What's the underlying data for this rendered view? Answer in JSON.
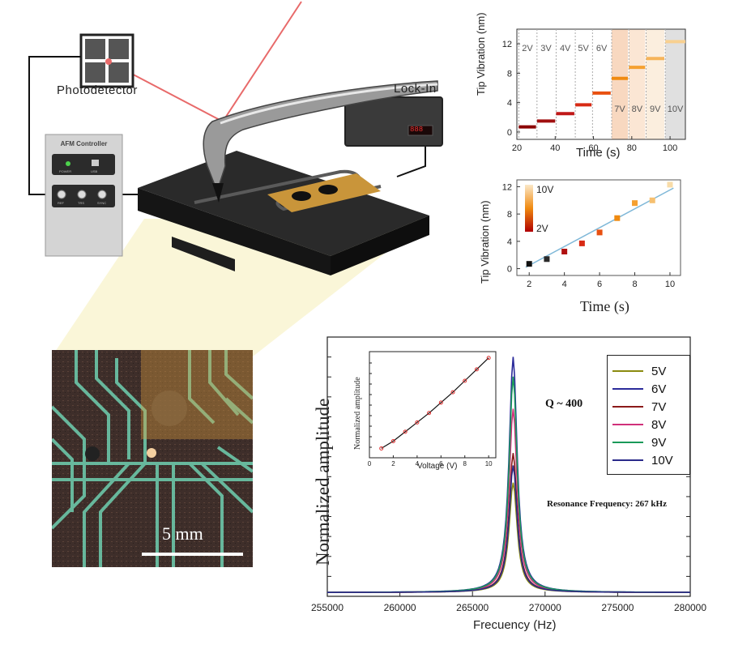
{
  "setup": {
    "photodetector_label": "Photodetector",
    "lockin_label": "Lock-In",
    "lockin_display": "888",
    "afm_controller": {
      "title": "AFM Controller",
      "top_ports": [
        "POWER",
        "USB"
      ],
      "bottom_ports": [
        "REF",
        "TRS",
        "SYNC"
      ]
    }
  },
  "micrograph": {
    "scale_bar_label": "5 mm"
  },
  "chart_data": [
    {
      "id": "time-trace",
      "type": "line",
      "xlabel": "Time (s)",
      "ylabel": "Tip Vibration (nm)",
      "xlim": [
        20,
        108
      ],
      "ylim": [
        -1,
        14
      ],
      "xticks": [
        20,
        40,
        60,
        80,
        100
      ],
      "yticks": [
        0,
        4,
        8,
        12
      ],
      "segments": [
        {
          "label": "2V",
          "x": [
            21,
            30
          ],
          "y": 0.7,
          "color": "#8b0000"
        },
        {
          "label": "3V",
          "x": [
            30.5,
            40
          ],
          "y": 1.5,
          "color": "#a01010"
        },
        {
          "label": "4V",
          "x": [
            40.5,
            50
          ],
          "y": 2.5,
          "color": "#c01818"
        },
        {
          "label": "5V",
          "x": [
            50.5,
            59
          ],
          "y": 3.7,
          "color": "#d82a14"
        },
        {
          "label": "6V",
          "x": [
            59.5,
            69
          ],
          "y": 5.3,
          "color": "#e85010"
        },
        {
          "label": "7V",
          "x": [
            69.5,
            78
          ],
          "y": 7.3,
          "color": "#f08a10"
        },
        {
          "label": "8V",
          "x": [
            78.5,
            87
          ],
          "y": 8.8,
          "color": "#f5a030"
        },
        {
          "label": "9V",
          "x": [
            87.5,
            97
          ],
          "y": 10.0,
          "color": "#f6b45a"
        },
        {
          "label": "10V",
          "x": [
            97.5,
            108
          ],
          "y": 12.3,
          "color": "#f8d090"
        }
      ]
    },
    {
      "id": "voltage-scatter",
      "type": "scatter",
      "xlabel": "Time (s)",
      "ylabel": "Tip Vibration (nm)",
      "xlim": [
        1.3,
        10.6
      ],
      "ylim": [
        -1,
        13
      ],
      "xticks": [
        2,
        4,
        6,
        8,
        10
      ],
      "yticks": [
        0,
        4,
        8,
        12
      ],
      "x": [
        2,
        3,
        4,
        5,
        6,
        7,
        8,
        9,
        10
      ],
      "y": [
        0.7,
        1.4,
        2.5,
        3.7,
        5.3,
        7.4,
        9.6,
        10.0,
        12.3
      ],
      "colors": [
        "#111111",
        "#2a2a2a",
        "#b01010",
        "#d82a14",
        "#e85010",
        "#f08a10",
        "#f5a030",
        "#f6c070",
        "#f8dca8"
      ],
      "fit": {
        "x": [
          1.8,
          10.2
        ],
        "y": [
          0.2,
          11.8
        ],
        "color": "#7fb8d8"
      },
      "colorbar": {
        "top_label": "10V",
        "bottom_label": "2V"
      }
    },
    {
      "id": "resonance",
      "type": "line",
      "xlabel": "Frecuency (Hz)",
      "ylabel": "Normalized amplitude",
      "xlim": [
        255000,
        280000
      ],
      "ylim": [
        0,
        1.05
      ],
      "xticks": [
        255000,
        260000,
        265000,
        270000,
        275000,
        280000
      ],
      "center_frequency": 267800,
      "series": [
        {
          "name": "5V",
          "color": "#8b8b10",
          "peak": 0.44
        },
        {
          "name": "6V",
          "color": "#2b2b9a",
          "peak": 0.95
        },
        {
          "name": "7V",
          "color": "#8b1a1a",
          "peak": 0.56
        },
        {
          "name": "8V",
          "color": "#d0307a",
          "peak": 0.74
        },
        {
          "name": "9V",
          "color": "#1a9a5a",
          "peak": 0.87
        },
        {
          "name": "10V",
          "color": "#2a2a8a",
          "peak": 0.51
        }
      ],
      "annotations": {
        "q": "Q ~ 400",
        "resonance": "Resonance Frequency: 267 kHz"
      },
      "inset": {
        "type": "line",
        "xlabel": "Voltage (V)",
        "ylabel": "Normalized amplitude",
        "xlim": [
          0,
          10.6
        ],
        "xticks": [
          0,
          2,
          4,
          6,
          8,
          10
        ],
        "x": [
          1,
          2,
          3,
          4,
          5,
          6,
          7,
          8,
          9,
          10
        ],
        "y": [
          0.9,
          1.6,
          2.5,
          3.4,
          4.3,
          5.3,
          6.3,
          7.4,
          8.5,
          9.6
        ]
      }
    }
  ]
}
